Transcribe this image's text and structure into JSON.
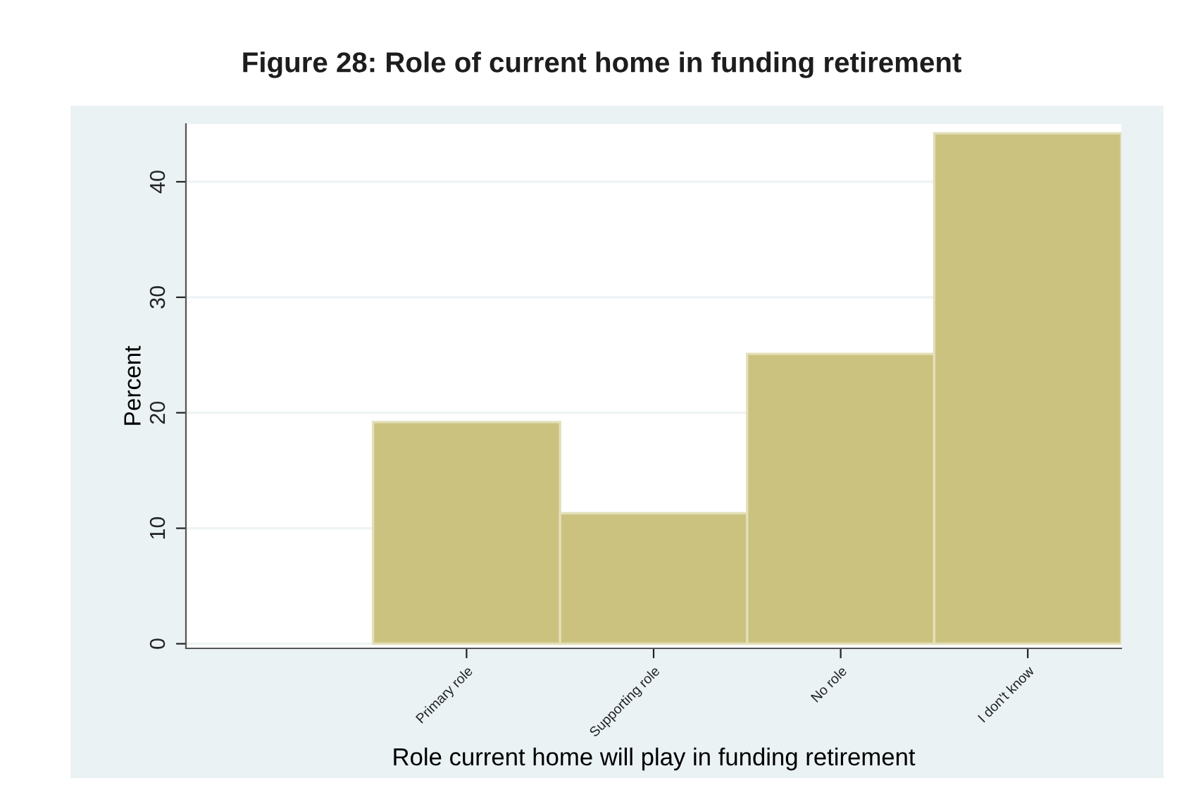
{
  "chart_data": {
    "type": "bar",
    "title": "Figure 28: Role of current home in funding retirement",
    "xlabel": "Role current home will play in funding retirement",
    "ylabel": "Percent",
    "categories": [
      null,
      "Primary role",
      "Supporting role",
      "No role",
      "I don't know"
    ],
    "values": [
      null,
      19.2,
      11.3,
      25.1,
      44.2
    ],
    "color": "#cbc280",
    "ylim": [
      -0.4,
      45
    ],
    "yticks": [
      0,
      10,
      20,
      30,
      40
    ],
    "grid": "y"
  }
}
